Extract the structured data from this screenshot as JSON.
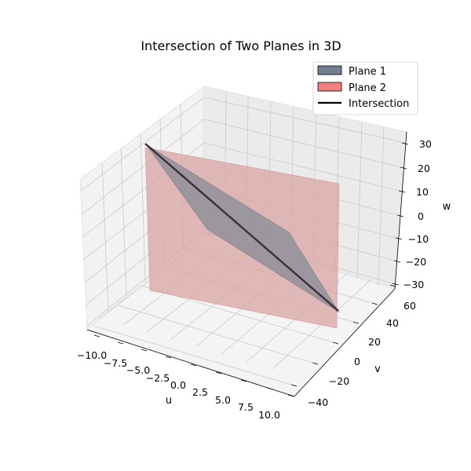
{
  "chart_data": {
    "type": "3d-surface",
    "title": "Intersection of Two Planes in 3D",
    "xlabel": "u",
    "ylabel": "v",
    "zlabel": "w",
    "xticks": [
      "−10.0",
      "−7.5",
      "−5.0",
      "−2.5",
      "0.0",
      "2.5",
      "5.0",
      "7.5",
      "10.0"
    ],
    "yticks": [
      "−40",
      "−20",
      "0",
      "20",
      "40",
      "60"
    ],
    "zticks": [
      "−30",
      "−20",
      "−10",
      "0",
      "10",
      "20",
      "30"
    ],
    "xlim": [
      -10,
      10
    ],
    "ylim": [
      -50,
      65
    ],
    "zlim": [
      -30,
      30
    ],
    "legend_position": "top-right",
    "grid": true,
    "series": [
      {
        "name": "Plane 1",
        "kind": "surface",
        "color": "#708090"
      },
      {
        "name": "Plane 2",
        "kind": "surface",
        "color": "#f08080"
      },
      {
        "name": "Intersection",
        "kind": "line",
        "color": "#000000"
      }
    ]
  }
}
